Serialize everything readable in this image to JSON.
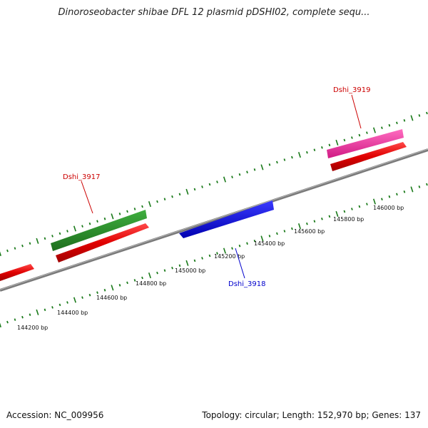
{
  "title": "Dinoroseobacter shibae DFL 12 plasmid pDSHI02, complete sequ...",
  "footer": {
    "accession": "Accession: NC_009956",
    "summary": "Topology: circular; Length: 152,970 bp; Genes: 137"
  },
  "colors": {
    "backbone": "#888888",
    "tick": "#1a7a1a",
    "cds": "#e00000",
    "gene_green": "#2a8a2a",
    "gene_blue": "#1010ee",
    "gene_pink": "#ee3399",
    "label_red": "#cc0000",
    "label_blue": "#0000cc"
  },
  "axis_labels": [
    "144200 bp",
    "144400 bp",
    "144600 bp",
    "144800 bp",
    "145000 bp",
    "145200 bp",
    "145400 bp",
    "145600 bp",
    "145800 bp",
    "146000 bp"
  ],
  "genes": [
    {
      "name": "Dshi_3917",
      "color": "#cc0000"
    },
    {
      "name": "Dshi_3918",
      "color": "#0000cc"
    },
    {
      "name": "Dshi_3919",
      "color": "#cc0000"
    }
  ]
}
